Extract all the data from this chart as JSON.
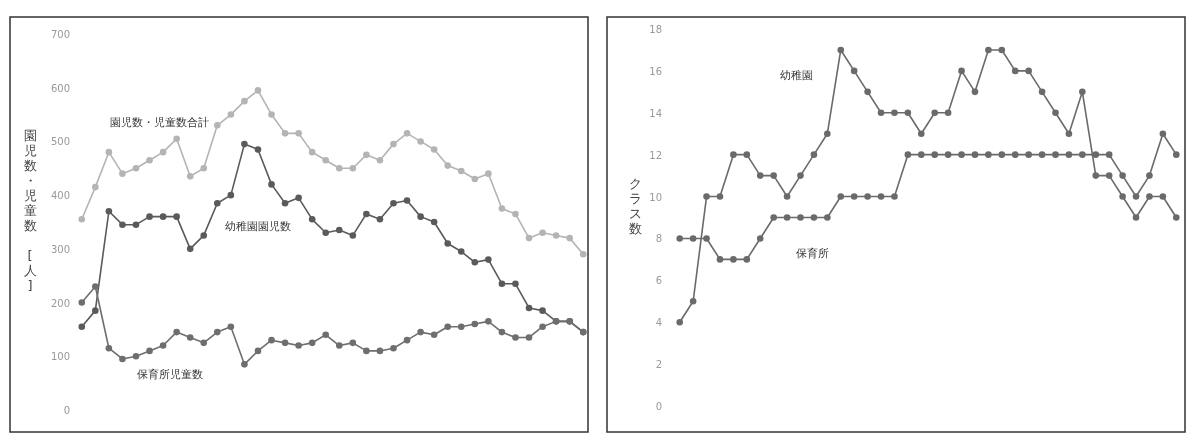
{
  "chart_data": [
    {
      "type": "line",
      "ylabel": "園児数・児童数 [人]",
      "categories": [
        null,
        null,
        null,
        null,
        null,
        null,
        null,
        null,
        null,
        null,
        null,
        null,
        null,
        null,
        null,
        null,
        null,
        null,
        null,
        null,
        null,
        null,
        null,
        null,
        null,
        null,
        null,
        null,
        null,
        null,
        null,
        null,
        null,
        null,
        null,
        null,
        null,
        null
      ],
      "ylim": [
        0,
        700
      ],
      "yticks": [
        0,
        100,
        200,
        300,
        400,
        500,
        600,
        700
      ],
      "marker": "circle",
      "grid": false,
      "legend": false,
      "series": [
        {
          "name": "園児数・児童数合計",
          "color": "#b4b4b4",
          "values": [
            355,
            415,
            480,
            440,
            450,
            465,
            480,
            505,
            435,
            450,
            530,
            550,
            575,
            595,
            550,
            515,
            515,
            480,
            465,
            450,
            450,
            475,
            465,
            495,
            515,
            500,
            485,
            455,
            445,
            430,
            440,
            375,
            365,
            320,
            330,
            325,
            320,
            290
          ]
        },
        {
          "name": "幼稚園園児数",
          "color": "#5a5a5a",
          "values": [
            155,
            185,
            370,
            345,
            345,
            360,
            360,
            360,
            300,
            325,
            385,
            400,
            495,
            485,
            420,
            385,
            395,
            355,
            330,
            335,
            325,
            365,
            355,
            385,
            390,
            360,
            350,
            310,
            295,
            275,
            280,
            235,
            235,
            190,
            185,
            165,
            165,
            145
          ]
        },
        {
          "name": "保育所児童数",
          "color": "#6e6e6e",
          "values": [
            200,
            230,
            115,
            95,
            100,
            110,
            120,
            145,
            135,
            125,
            145,
            155,
            85,
            110,
            130,
            125,
            120,
            125,
            140,
            120,
            125,
            110,
            110,
            115,
            130,
            145,
            140,
            155,
            155,
            160,
            165,
            145,
            135,
            135,
            155,
            165,
            165,
            145
          ]
        }
      ]
    },
    {
      "type": "line",
      "ylabel": "クラス数",
      "categories": [
        null,
        null,
        null,
        null,
        null,
        null,
        null,
        null,
        null,
        null,
        null,
        null,
        null,
        null,
        null,
        null,
        null,
        null,
        null,
        null,
        null,
        null,
        null,
        null,
        null,
        null,
        null,
        null,
        null,
        null,
        null,
        null,
        null,
        null,
        null,
        null,
        null,
        null
      ],
      "ylim": [
        0,
        18
      ],
      "yticks": [
        0,
        2,
        4,
        6,
        8,
        10,
        12,
        14,
        16,
        18
      ],
      "marker": "circle",
      "grid": false,
      "legend": false,
      "series": [
        {
          "name": "幼稚園",
          "color": "#6a6a6a",
          "values": [
            4,
            5,
            10,
            10,
            12,
            12,
            11,
            11,
            10,
            11,
            12,
            13,
            17,
            16,
            15,
            14,
            14,
            14,
            13,
            14,
            14,
            16,
            15,
            17,
            17,
            16,
            16,
            15,
            14,
            13,
            15,
            11,
            11,
            10,
            9,
            10,
            10,
            9
          ]
        },
        {
          "name": "保育所",
          "color": "#6a6a6a",
          "values": [
            8,
            8,
            8,
            7,
            7,
            7,
            8,
            9,
            9,
            9,
            9,
            9,
            10,
            10,
            10,
            10,
            10,
            12,
            12,
            12,
            12,
            12,
            12,
            12,
            12,
            12,
            12,
            12,
            12,
            12,
            12,
            12,
            12,
            11,
            10,
            11,
            13,
            12
          ]
        }
      ]
    }
  ]
}
